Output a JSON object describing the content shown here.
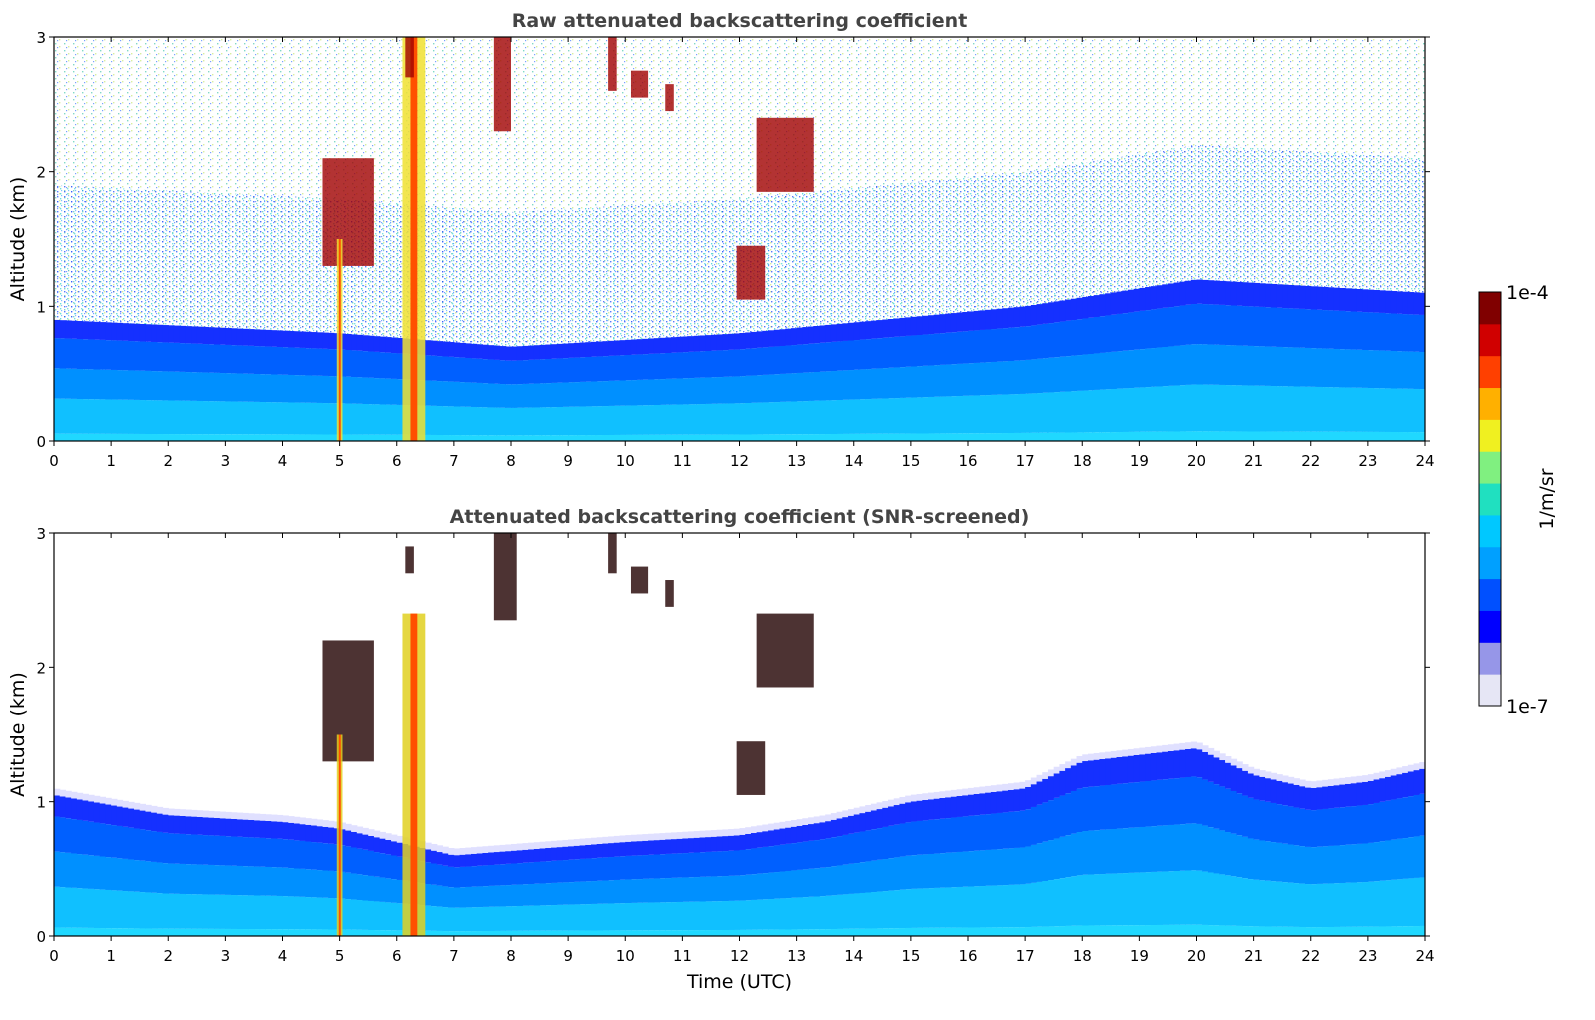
{
  "figure": {
    "colorbar_label": "1/m/sr",
    "colorbar_max": "1e-4",
    "colorbar_min": "1e-7"
  },
  "colors": {
    "background": "#ffffff",
    "colormap": [
      "#e6e6f5",
      "#9696e8",
      "#0000ff",
      "#0050ff",
      "#00a0ff",
      "#00c8ff",
      "#20e0c0",
      "#80f080",
      "#f0f020",
      "#ffb000",
      "#ff4000",
      "#d00000",
      "#800000"
    ]
  },
  "chart_data": [
    {
      "type": "heatmap",
      "title": "Raw attenuated backscattering coefficient",
      "xlabel": "",
      "ylabel": "Altitude (km)",
      "xlim": [
        0,
        24
      ],
      "ylim": [
        0,
        3
      ],
      "xticks": [
        "0",
        "1",
        "2",
        "3",
        "4",
        "5",
        "6",
        "7",
        "8",
        "9",
        "10",
        "11",
        "12",
        "13",
        "14",
        "15",
        "16",
        "17",
        "18",
        "19",
        "20",
        "21",
        "22",
        "23",
        "24"
      ],
      "yticks": [
        "0",
        "1",
        "2",
        "3"
      ],
      "colorscale": "log",
      "clim": [
        "1e-7",
        "1e-4"
      ],
      "boundary_layer_top_km": [
        [
          0,
          0.9
        ],
        [
          5,
          0.8
        ],
        [
          8,
          0.7
        ],
        [
          12,
          0.8
        ],
        [
          17,
          1.0
        ],
        [
          20,
          1.2
        ],
        [
          24,
          1.1
        ]
      ],
      "features": [
        {
          "kind": "cloud",
          "t_start": 4.7,
          "t_end": 5.6,
          "alt_bottom": 1.3,
          "alt_top": 2.1
        },
        {
          "kind": "precipitation",
          "t_start": 4.95,
          "t_end": 5.05,
          "alt_bottom": 0,
          "alt_top": 1.5
        },
        {
          "kind": "precipitation",
          "t_start": 6.1,
          "t_end": 6.5,
          "alt_bottom": 0,
          "alt_top": 3.0
        },
        {
          "kind": "cloud",
          "t_start": 6.15,
          "t_end": 6.3,
          "alt_bottom": 2.7,
          "alt_top": 3.0
        },
        {
          "kind": "cloud",
          "t_start": 7.7,
          "t_end": 8.0,
          "alt_bottom": 2.3,
          "alt_top": 3.0
        },
        {
          "kind": "cloud",
          "t_start": 9.7,
          "t_end": 9.85,
          "alt_bottom": 2.6,
          "alt_top": 3.0
        },
        {
          "kind": "cloud",
          "t_start": 10.1,
          "t_end": 10.4,
          "alt_bottom": 2.55,
          "alt_top": 2.75
        },
        {
          "kind": "cloud",
          "t_start": 10.7,
          "t_end": 10.85,
          "alt_bottom": 2.45,
          "alt_top": 2.65
        },
        {
          "kind": "cloud",
          "t_start": 11.95,
          "t_end": 12.45,
          "alt_bottom": 1.05,
          "alt_top": 1.45
        },
        {
          "kind": "cloud",
          "t_start": 12.3,
          "t_end": 13.3,
          "alt_bottom": 1.85,
          "alt_top": 2.4
        }
      ]
    },
    {
      "type": "heatmap",
      "title": "Attenuated backscattering coefficient (SNR-screened)",
      "xlabel": "Time (UTC)",
      "ylabel": "Altitude (km)",
      "xlim": [
        0,
        24
      ],
      "ylim": [
        0,
        3
      ],
      "xticks": [
        "0",
        "1",
        "2",
        "3",
        "4",
        "5",
        "6",
        "7",
        "8",
        "9",
        "10",
        "11",
        "12",
        "13",
        "14",
        "15",
        "16",
        "17",
        "18",
        "19",
        "20",
        "21",
        "22",
        "23",
        "24"
      ],
      "yticks": [
        "0",
        "1",
        "2",
        "3"
      ],
      "colorscale": "log",
      "clim": [
        "1e-7",
        "1e-4"
      ],
      "boundary_layer_top_km": [
        [
          0,
          1.05
        ],
        [
          2,
          0.9
        ],
        [
          4,
          0.85
        ],
        [
          5,
          0.8
        ],
        [
          7,
          0.6
        ],
        [
          8.5,
          0.65
        ],
        [
          10,
          0.7
        ],
        [
          12,
          0.75
        ],
        [
          13.5,
          0.85
        ],
        [
          15,
          1.0
        ],
        [
          17,
          1.1
        ],
        [
          18,
          1.3
        ],
        [
          19,
          1.35
        ],
        [
          20,
          1.4
        ],
        [
          21,
          1.2
        ],
        [
          22,
          1.1
        ],
        [
          23,
          1.15
        ],
        [
          24,
          1.25
        ]
      ],
      "features": [
        {
          "kind": "cloud",
          "t_start": 4.7,
          "t_end": 5.6,
          "alt_bottom": 1.3,
          "alt_top": 2.2
        },
        {
          "kind": "precipitation",
          "t_start": 4.95,
          "t_end": 5.05,
          "alt_bottom": 0,
          "alt_top": 1.5
        },
        {
          "kind": "precipitation",
          "t_start": 6.1,
          "t_end": 6.5,
          "alt_bottom": 0,
          "alt_top": 2.4
        },
        {
          "kind": "cloud",
          "t_start": 6.15,
          "t_end": 6.3,
          "alt_bottom": 2.7,
          "alt_top": 2.9
        },
        {
          "kind": "cloud",
          "t_start": 7.7,
          "t_end": 8.1,
          "alt_bottom": 2.35,
          "alt_top": 3.0
        },
        {
          "kind": "cloud",
          "t_start": 9.7,
          "t_end": 9.85,
          "alt_bottom": 2.7,
          "alt_top": 3.0
        },
        {
          "kind": "cloud",
          "t_start": 10.1,
          "t_end": 10.4,
          "alt_bottom": 2.55,
          "alt_top": 2.75
        },
        {
          "kind": "cloud",
          "t_start": 10.7,
          "t_end": 10.85,
          "alt_bottom": 2.45,
          "alt_top": 2.65
        },
        {
          "kind": "cloud",
          "t_start": 11.95,
          "t_end": 12.45,
          "alt_bottom": 1.05,
          "alt_top": 1.45
        },
        {
          "kind": "cloud",
          "t_start": 12.3,
          "t_end": 13.3,
          "alt_bottom": 1.85,
          "alt_top": 2.4
        }
      ]
    }
  ]
}
